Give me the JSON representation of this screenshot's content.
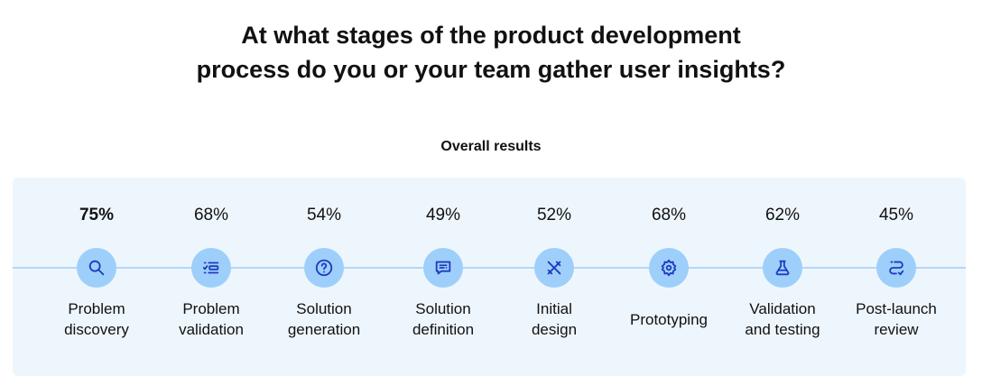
{
  "title_line1": "At what stages of the product development",
  "title_line2": "process do you or your team gather user insights?",
  "subtitle": "Overall results",
  "chart_data": {
    "type": "bar",
    "title": "At what stages of the product development process do you or your team gather user insights?",
    "subtitle": "Overall results",
    "categories": [
      "Problem discovery",
      "Problem validation",
      "Solution generation",
      "Solution definition",
      "Initial design",
      "Prototyping",
      "Validation and testing",
      "Post-launch review"
    ],
    "values": [
      75,
      68,
      54,
      49,
      52,
      68,
      62,
      45
    ],
    "labels": [
      "75%",
      "68%",
      "54%",
      "49%",
      "52%",
      "68%",
      "62%",
      "45%"
    ],
    "label_lines": [
      [
        "Problem",
        "discovery"
      ],
      [
        "Problem",
        "validation"
      ],
      [
        "Solution",
        "generation"
      ],
      [
        "Solution",
        "definition"
      ],
      [
        "Initial",
        "design"
      ],
      [
        "Prototyping"
      ],
      [
        "Validation",
        "and testing"
      ],
      [
        "Post-launch",
        "review"
      ]
    ],
    "icons": [
      "search-icon",
      "checklist-icon",
      "question-icon",
      "message-icon",
      "design-tools-icon",
      "gear-icon",
      "flask-icon",
      "route-icon"
    ],
    "highlight_index": 0,
    "colors": {
      "circle": "#9ecffb",
      "icon": "#1f3bbf",
      "panel": "#eef6fd",
      "line": "#b3d8f8"
    }
  }
}
